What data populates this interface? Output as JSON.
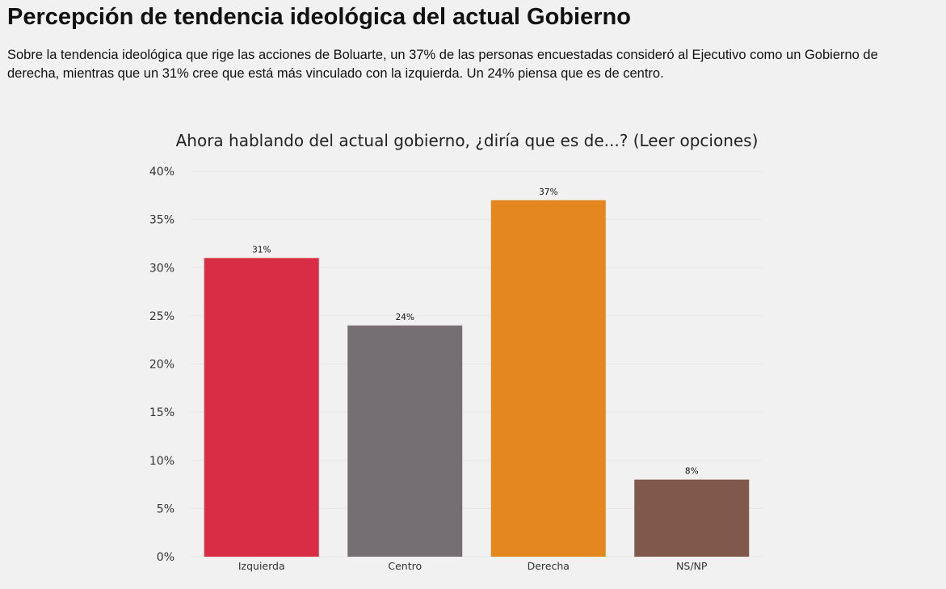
{
  "header": {
    "title": "Percepción de tendencia ideológica del actual Gobierno",
    "intro": "Sobre la tendencia ideológica que rige las acciones de Boluarte, un 37% de las personas encuestadas consideró al Ejecutivo como un Gobierno de derecha, mientras que un 31% cree que está más vinculado con la izquierda. Un 24% piensa que es de centro."
  },
  "chart_data": {
    "type": "bar",
    "title": "Ahora hablando del actual gobierno, ¿diría que es de...? (Leer opciones)",
    "categories": [
      "Izquierda",
      "Centro",
      "Derecha",
      "NS/NP"
    ],
    "values": [
      31,
      24,
      37,
      8
    ],
    "data_labels": [
      "31%",
      "24%",
      "37%",
      "8%"
    ],
    "colors": [
      "#d92d45",
      "#756f73",
      "#e3871e",
      "#80584c"
    ],
    "yticks": [
      0,
      5,
      10,
      15,
      20,
      25,
      30,
      35,
      40
    ],
    "ytick_labels": [
      "0%",
      "5%",
      "10%",
      "15%",
      "20%",
      "25%",
      "30%",
      "35%",
      "40%"
    ],
    "ylim": [
      0,
      40
    ],
    "xlabel": "",
    "ylabel": "",
    "grid": true
  }
}
